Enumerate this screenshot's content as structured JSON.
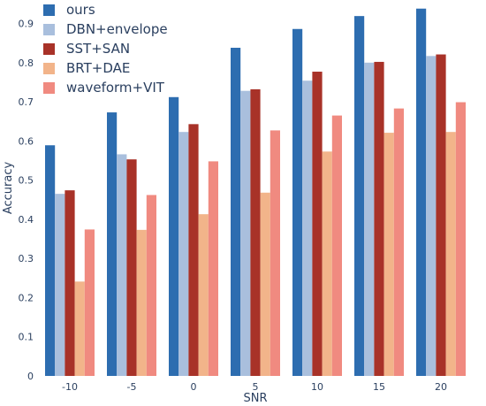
{
  "chart_data": {
    "type": "bar",
    "xlabel": "SNR",
    "ylabel": "Accuracy",
    "categories": [
      "-10",
      "-5",
      "0",
      "5",
      "10",
      "15",
      "20"
    ],
    "ylim": [
      0,
      0.96
    ],
    "yticks": [
      0,
      0.1,
      0.2,
      0.3,
      0.4,
      0.5,
      0.6,
      0.7,
      0.8,
      0.9
    ],
    "grid": false,
    "legend_position": "top-left",
    "series": [
      {
        "name": "ours",
        "color": "#2d6db0",
        "values": [
          0.589,
          0.673,
          0.712,
          0.838,
          0.886,
          0.919,
          0.938
        ]
      },
      {
        "name": "DBN+envelope",
        "color": "#a9bfdd",
        "values": [
          0.465,
          0.566,
          0.623,
          0.728,
          0.754,
          0.8,
          0.817
        ]
      },
      {
        "name": "SST+SAN",
        "color": "#a83228",
        "values": [
          0.474,
          0.553,
          0.643,
          0.732,
          0.777,
          0.802,
          0.821
        ]
      },
      {
        "name": "BRT+DAE",
        "color": "#f2b48a",
        "values": [
          0.241,
          0.373,
          0.413,
          0.468,
          0.573,
          0.621,
          0.623
        ]
      },
      {
        "name": "waveform+VIT",
        "color": "#f08a80",
        "values": [
          0.374,
          0.462,
          0.548,
          0.627,
          0.665,
          0.683,
          0.699
        ]
      }
    ]
  }
}
